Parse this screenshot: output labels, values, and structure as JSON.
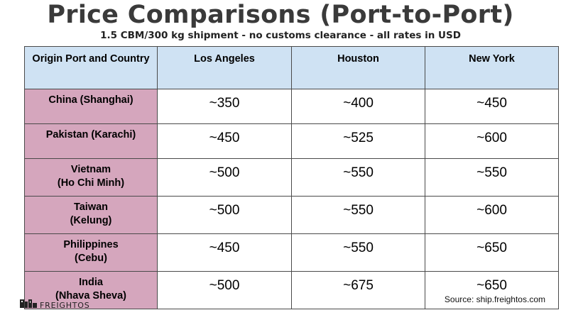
{
  "title": "Price Comparisons (Port-to-Port)",
  "subtitle": "1.5 CBM/300 kg shipment - no customs clearance - all rates in USD",
  "table": {
    "headers": [
      "Origin Port and Country",
      "Los Angeles",
      "Houston",
      "New York"
    ],
    "rows": [
      {
        "origin": [
          "China (Shanghai)"
        ],
        "values": [
          "~350",
          "~400",
          "~450"
        ]
      },
      {
        "origin": [
          "Pakistan (Karachi)"
        ],
        "values": [
          "~450",
          "~525",
          "~600"
        ]
      },
      {
        "origin": [
          "Vietnam",
          "(Ho Chi Minh)"
        ],
        "values": [
          "~500",
          "~550",
          "~550"
        ]
      },
      {
        "origin": [
          "Taiwan",
          "(Kelung)"
        ],
        "values": [
          "~500",
          "~550",
          "~600"
        ]
      },
      {
        "origin": [
          "Philippines",
          "(Cebu)"
        ],
        "values": [
          "~450",
          "~550",
          "~650"
        ]
      },
      {
        "origin": [
          "India",
          "(Nhava Sheva)"
        ],
        "values": [
          "~500",
          "~675",
          "~650"
        ]
      }
    ]
  },
  "source": "Source: ship.freightos.com",
  "brand": {
    "name": "FREIGHTOS",
    "logo_icon": "freightos-logo-icon"
  },
  "colors": {
    "header_bg": "#cfe2f3",
    "origin_bg": "#d5a6bd",
    "title": "#3a3a3a"
  }
}
